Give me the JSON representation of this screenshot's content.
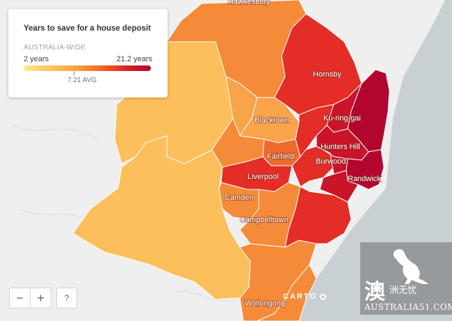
{
  "legend": {
    "title": "Years to save for a house deposit",
    "subtitle": "AUSTRALIA-WIDE",
    "min_label": "2 years",
    "max_label": "21.2 years",
    "avg_label": "7.21 AVG",
    "min_value": 2,
    "max_value": 21.2,
    "avg_value": 7.21
  },
  "labels": {
    "hawkesbury": "Hawkesbury",
    "hornsby": "Hornsby",
    "blacktown": "Blacktown",
    "ku_ring_gai": "Ku-ring-gai",
    "hunters_hill": "Hunters Hill",
    "fairfield": "Fairfield",
    "burwood": "Burwood",
    "liverpool": "Liverpool",
    "randwick": "Randwick",
    "camden": "Camden",
    "campbelltown": "Campbelltown",
    "wollongong": "Wollongong"
  },
  "controls": {
    "zoom_out": "−",
    "zoom_in": "+",
    "help": "?"
  },
  "attribution": "CARTO",
  "watermark": {
    "char": "澳",
    "cn_text": "洲无忧",
    "text": "AUSTRALIA51.COM"
  },
  "colors": {
    "land": "#f2f2f2",
    "sea": "#c9d0d4",
    "lightest": "#fcbf5b",
    "light": "#f9a34a",
    "medium": "#f58a38",
    "orange_red": "#ef6a2c",
    "red": "#e32d26",
    "dark_red": "#c9142a",
    "darkest": "#b3052e"
  }
}
